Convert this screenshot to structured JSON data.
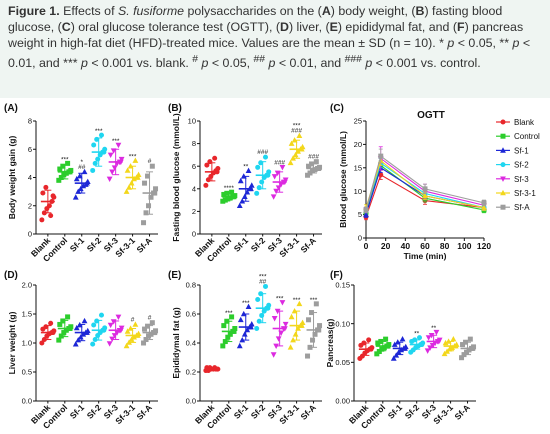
{
  "caption": {
    "figure_label": "Figure 1.",
    "s1": " Effects of ",
    "species": "S. fusiforme",
    "s2": " polysaccharides on the (",
    "a": "A",
    "s3": ") body weight, (",
    "b": "B",
    "s4": ") fasting blood glucose, (",
    "c": "C",
    "s5": ") oral glucose tolerance test (OGTT), (",
    "d": "D",
    "s6": ") liver, (",
    "e": "E",
    "s7": ") epididymal fat, and (",
    "f": "F",
    "s8": ") pancreas weight in high-fat diet (HFD)-treated mice. Values are the mean ± SD (n = 10). * ",
    "p1": "p",
    "s9": " < 0.05, ** ",
    "p2": "p",
    "s10": " < 0.01, and *** ",
    "p3": "p",
    "s11": " < 0.001 vs. blank. ",
    "h1": "#",
    "s12": " ",
    "p4": "p",
    "s13": " < 0.05, ",
    "h2": "##",
    "s14": " ",
    "p5": "p",
    "s15": " < 0.01, and ",
    "h3": "###",
    "s16": " ",
    "p6": "p",
    "s17": " < 0.001 vs. control."
  },
  "colors": {
    "Blank": "#e8262b",
    "Control": "#2ccd2c",
    "Sf-1": "#1d27d6",
    "Sf-2": "#1fd6f0",
    "Sf-3": "#dc2ae0",
    "Sf-3-1": "#f3d71b",
    "Sf-A": "#9d9d9d"
  },
  "chart_data": [
    {
      "id": "A",
      "panel_label": "(A)",
      "type": "scatter",
      "categories": [
        "Blank",
        "Control",
        "Sf-1",
        "Sf-2",
        "Sf-3",
        "Sf-3-1",
        "Sf-A"
      ],
      "ylabel": "Body weight gain (g)",
      "ylim": [
        0,
        8
      ],
      "yticks": [
        0,
        2,
        4,
        6,
        8
      ],
      "means": [
        2.3,
        4.4,
        3.6,
        5.8,
        5.1,
        4.0,
        2.9
      ],
      "sd": [
        0.8,
        0.5,
        0.7,
        1.0,
        0.9,
        0.8,
        1.5
      ],
      "points": [
        [
          1.0,
          1.5,
          1.8,
          2.0,
          2.3,
          2.6,
          2.9,
          3.3,
          1.3,
          2.7
        ],
        [
          3.8,
          4.0,
          4.2,
          4.3,
          4.4,
          4.5,
          4.6,
          4.8,
          5.0,
          4.4
        ],
        [
          2.6,
          3.0,
          3.2,
          3.4,
          3.5,
          3.7,
          3.9,
          4.1,
          4.4,
          3.6
        ],
        [
          4.5,
          5.0,
          5.3,
          5.6,
          5.8,
          6.0,
          6.3,
          6.7,
          7.0,
          5.8
        ],
        [
          3.9,
          4.4,
          4.7,
          5.0,
          5.1,
          5.3,
          5.6,
          5.9,
          6.3,
          5.1
        ],
        [
          3.0,
          3.3,
          3.6,
          3.9,
          4.0,
          4.2,
          4.5,
          4.8,
          5.2,
          4.0
        ],
        [
          0.8,
          1.5,
          2.0,
          2.6,
          2.9,
          3.2,
          3.6,
          4.1,
          4.8,
          2.9
        ]
      ],
      "annotations": [
        [
          "",
          ""
        ],
        [
          "***",
          ""
        ],
        [
          "*",
          "##"
        ],
        [
          "***",
          ""
        ],
        [
          "***",
          ""
        ],
        [
          "***",
          ""
        ],
        [
          "",
          "#"
        ]
      ]
    },
    {
      "id": "B",
      "panel_label": "(B)",
      "type": "scatter",
      "categories": [
        "Blank",
        "Control",
        "Sf-1",
        "Sf-2",
        "Sf-3",
        "Sf-3-1",
        "Sf-A"
      ],
      "ylabel": "Fasting blood glucose (mmol/L)",
      "ylim": [
        0,
        10
      ],
      "yticks": [
        0,
        2,
        4,
        6,
        8,
        10
      ],
      "means": [
        5.5,
        3.3,
        4.0,
        5.2,
        4.6,
        7.5,
        5.8
      ],
      "sd": [
        0.8,
        0.3,
        1.1,
        1.2,
        0.9,
        0.8,
        0.4
      ],
      "points": [
        [
          4.3,
          4.8,
          5.1,
          5.4,
          5.6,
          5.8,
          6.1,
          6.4,
          6.7,
          5.5
        ],
        [
          2.9,
          3.0,
          3.1,
          3.2,
          3.3,
          3.4,
          3.5,
          3.6,
          3.7,
          3.3
        ],
        [
          2.5,
          2.9,
          3.3,
          3.7,
          4.0,
          4.3,
          4.7,
          5.1,
          5.6,
          4.0
        ],
        [
          3.6,
          4.1,
          4.6,
          5.0,
          5.2,
          5.5,
          5.9,
          6.3,
          6.8,
          5.2
        ],
        [
          3.3,
          3.8,
          4.1,
          4.4,
          4.6,
          4.8,
          5.1,
          5.4,
          5.9,
          4.6
        ],
        [
          6.3,
          6.7,
          7.0,
          7.3,
          7.5,
          7.7,
          8.0,
          8.3,
          8.7,
          7.5
        ],
        [
          5.2,
          5.4,
          5.6,
          5.7,
          5.8,
          5.9,
          6.0,
          6.2,
          6.4,
          5.8
        ]
      ],
      "annotations": [
        [
          "",
          ""
        ],
        [
          "****",
          ""
        ],
        [
          "**",
          ""
        ],
        [
          "",
          "###"
        ],
        [
          "",
          "###"
        ],
        [
          "***",
          "###"
        ],
        [
          "",
          "###"
        ]
      ]
    },
    {
      "id": "C",
      "panel_label": "(C)",
      "type": "line",
      "title": "OGTT",
      "xlabel": "Time (min)",
      "ylabel": "Blood glucose (mmol/L)",
      "ylim": [
        0,
        25
      ],
      "yticks": [
        0,
        5,
        10,
        15,
        20,
        25
      ],
      "xlim": [
        0,
        120
      ],
      "xticks": [
        0,
        20,
        40,
        60,
        80,
        100,
        120
      ],
      "x": [
        0,
        15,
        60,
        120
      ],
      "series": [
        {
          "name": "Blank",
          "values": [
            4.5,
            13.5,
            8.0,
            6.5
          ],
          "sd": [
            0.6,
            1.0,
            0.8,
            0.6
          ]
        },
        {
          "name": "Control",
          "values": [
            5.5,
            15.5,
            8.5,
            6.0
          ],
          "sd": [
            0.6,
            1.0,
            0.8,
            0.6
          ]
        },
        {
          "name": "Sf-1",
          "values": [
            5.0,
            15.0,
            9.0,
            6.5
          ],
          "sd": [
            0.6,
            1.0,
            0.8,
            0.6
          ]
        },
        {
          "name": "Sf-2",
          "values": [
            6.0,
            16.0,
            9.5,
            6.5
          ],
          "sd": [
            0.6,
            1.0,
            0.8,
            0.6
          ]
        },
        {
          "name": "Sf-3",
          "values": [
            6.0,
            17.0,
            10.0,
            7.0
          ],
          "sd": [
            0.6,
            2.5,
            1.5,
            0.6
          ]
        },
        {
          "name": "Sf-3-1",
          "values": [
            6.5,
            16.5,
            9.0,
            6.5
          ],
          "sd": [
            0.6,
            1.0,
            0.8,
            0.6
          ]
        },
        {
          "name": "Sf-A",
          "values": [
            6.0,
            17.5,
            10.5,
            7.5
          ],
          "sd": [
            0.6,
            1.5,
            1.0,
            0.6
          ]
        }
      ],
      "legend": "right"
    },
    {
      "id": "D",
      "panel_label": "(D)",
      "type": "scatter",
      "categories": [
        "Blank",
        "Control",
        "Sf-1",
        "Sf-2",
        "Sf-3",
        "Sf-3-1",
        "Sf-A"
      ],
      "ylabel": "Liver weight (g)",
      "ylim": [
        0,
        2
      ],
      "yticks": [
        0,
        0.5,
        1.0,
        1.5,
        2.0
      ],
      "ytick_labels": [
        "0.0",
        "0.5",
        "1.0",
        "1.5",
        "2.0"
      ],
      "means": [
        1.18,
        1.25,
        1.18,
        1.22,
        1.22,
        1.13,
        1.18
      ],
      "sd": [
        0.12,
        0.14,
        0.14,
        0.17,
        0.16,
        0.12,
        0.12
      ],
      "points": [
        [
          1.0,
          1.06,
          1.12,
          1.16,
          1.18,
          1.21,
          1.24,
          1.28,
          1.34,
          1.18
        ],
        [
          1.05,
          1.12,
          1.18,
          1.22,
          1.25,
          1.28,
          1.32,
          1.38,
          1.45,
          1.25
        ],
        [
          0.98,
          1.05,
          1.1,
          1.15,
          1.18,
          1.21,
          1.26,
          1.31,
          1.38,
          1.18
        ],
        [
          0.98,
          1.06,
          1.13,
          1.18,
          1.22,
          1.26,
          1.31,
          1.38,
          1.48,
          1.22
        ],
        [
          0.99,
          1.07,
          1.13,
          1.18,
          1.22,
          1.26,
          1.31,
          1.37,
          1.45,
          1.22
        ],
        [
          0.95,
          1.01,
          1.06,
          1.1,
          1.13,
          1.16,
          1.2,
          1.25,
          1.32,
          1.13
        ],
        [
          1.0,
          1.06,
          1.12,
          1.15,
          1.18,
          1.21,
          1.24,
          1.29,
          1.35,
          1.18
        ]
      ],
      "annotations": [
        [
          "",
          ""
        ],
        [
          "",
          ""
        ],
        [
          "",
          ""
        ],
        [
          "",
          ""
        ],
        [
          "",
          ""
        ],
        [
          "",
          "#"
        ],
        [
          "",
          "#"
        ]
      ]
    },
    {
      "id": "E",
      "panel_label": "(E)",
      "type": "scatter",
      "categories": [
        "Blank",
        "Control",
        "Sf-1",
        "Sf-2",
        "Sf-3",
        "Sf-3-1",
        "Sf-A"
      ],
      "ylabel": "Epididymal fat (g)",
      "ylim": [
        0,
        0.8
      ],
      "yticks": [
        0,
        0.2,
        0.4,
        0.6,
        0.8
      ],
      "ytick_labels": [
        "0.0",
        "0.2",
        "0.4",
        "0.6",
        "0.8"
      ],
      "means": [
        0.22,
        0.48,
        0.51,
        0.64,
        0.5,
        0.52,
        0.49
      ],
      "sd": [
        0.01,
        0.07,
        0.09,
        0.1,
        0.12,
        0.1,
        0.12
      ],
      "points": [
        [
          0.21,
          0.21,
          0.22,
          0.22,
          0.22,
          0.22,
          0.23,
          0.23,
          0.23,
          0.22
        ],
        [
          0.38,
          0.41,
          0.44,
          0.46,
          0.48,
          0.5,
          0.52,
          0.55,
          0.58,
          0.48
        ],
        [
          0.38,
          0.42,
          0.46,
          0.49,
          0.51,
          0.53,
          0.56,
          0.6,
          0.65,
          0.51
        ],
        [
          0.5,
          0.55,
          0.59,
          0.62,
          0.64,
          0.66,
          0.7,
          0.74,
          0.79,
          0.64
        ],
        [
          0.32,
          0.38,
          0.43,
          0.47,
          0.5,
          0.53,
          0.57,
          0.62,
          0.68,
          0.5
        ],
        [
          0.37,
          0.42,
          0.46,
          0.5,
          0.52,
          0.54,
          0.58,
          0.62,
          0.67,
          0.52
        ],
        [
          0.31,
          0.37,
          0.42,
          0.46,
          0.49,
          0.52,
          0.56,
          0.61,
          0.67,
          0.49
        ]
      ],
      "annotations": [
        [
          "",
          ""
        ],
        [
          "***",
          ""
        ],
        [
          "***",
          ""
        ],
        [
          "***",
          "##"
        ],
        [
          "***",
          ""
        ],
        [
          "***",
          ""
        ],
        [
          "***",
          ""
        ]
      ]
    },
    {
      "id": "F",
      "panel_label": "(F)",
      "type": "scatter",
      "categories": [
        "Blank",
        "Control",
        "Sf-1",
        "Sf-2",
        "Sf-3",
        "Sf-3-1",
        "Sf-A"
      ],
      "ylabel": "Pancreas(g)",
      "ylim": [
        0,
        0.15
      ],
      "yticks": [
        0,
        0.05,
        0.1,
        0.15
      ],
      "ytick_labels": [
        "0.00",
        "0.05",
        "0.10",
        "0.15"
      ],
      "means": [
        0.067,
        0.071,
        0.068,
        0.073,
        0.077,
        0.071,
        0.068
      ],
      "sd": [
        0.008,
        0.006,
        0.008,
        0.006,
        0.008,
        0.006,
        0.008
      ],
      "points": [
        [
          0.055,
          0.058,
          0.062,
          0.065,
          0.067,
          0.069,
          0.072,
          0.075,
          0.079,
          0.067
        ],
        [
          0.061,
          0.064,
          0.067,
          0.069,
          0.071,
          0.073,
          0.075,
          0.077,
          0.08,
          0.071
        ],
        [
          0.055,
          0.059,
          0.063,
          0.066,
          0.068,
          0.07,
          0.073,
          0.076,
          0.08,
          0.068
        ],
        [
          0.063,
          0.066,
          0.069,
          0.071,
          0.073,
          0.075,
          0.077,
          0.079,
          0.082,
          0.073
        ],
        [
          0.065,
          0.069,
          0.072,
          0.075,
          0.077,
          0.079,
          0.082,
          0.085,
          0.089,
          0.077
        ],
        [
          0.061,
          0.064,
          0.067,
          0.069,
          0.071,
          0.073,
          0.075,
          0.077,
          0.08,
          0.071
        ],
        [
          0.056,
          0.06,
          0.063,
          0.066,
          0.068,
          0.07,
          0.073,
          0.076,
          0.08,
          0.068
        ]
      ],
      "annotations": [
        [
          "",
          ""
        ],
        [
          "",
          ""
        ],
        [
          "",
          ""
        ],
        [
          "**",
          ""
        ],
        [
          "**",
          ""
        ],
        [
          "",
          ""
        ],
        [
          "",
          ""
        ]
      ]
    }
  ]
}
